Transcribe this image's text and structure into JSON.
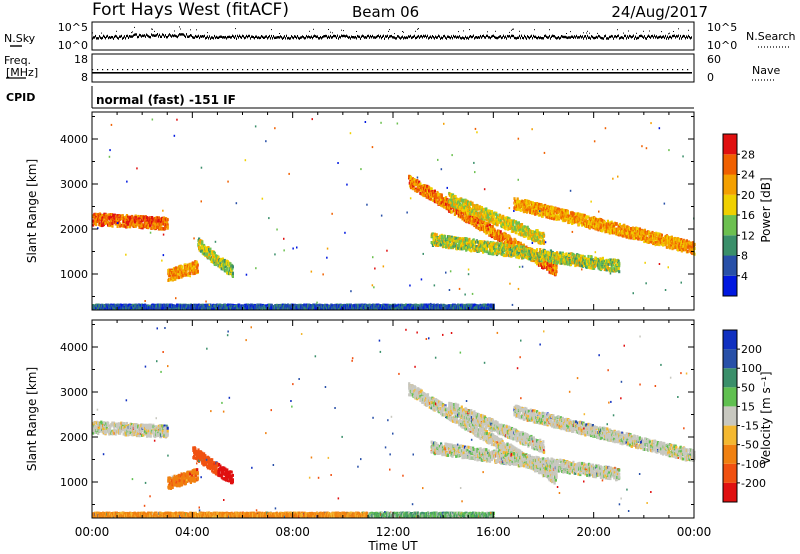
{
  "header": {
    "station": "Fort Hays West (fitACF)",
    "beam": "Beam 06",
    "date": "24/Aug/2017"
  },
  "noise_panel": {
    "left_label": "N.Sky",
    "left_ticks": [
      "10^5",
      "10^0"
    ],
    "right_ticks": [
      "10^5",
      "10^0"
    ],
    "right_label": "N.Search"
  },
  "freq_panel": {
    "left_label_1": "Freq.",
    "left_label_2": "[MHz]",
    "left_ticks": [
      "18",
      "8"
    ],
    "right_ticks": [
      "60",
      "0"
    ],
    "right_label": "Nave"
  },
  "cpid_panel": {
    "label": "CPID",
    "mode": "normal (fast) -151 IF"
  },
  "x_axis": {
    "label": "Time UT",
    "ticks": [
      "00:00",
      "04:00",
      "08:00",
      "12:00",
      "16:00",
      "20:00",
      "00:00"
    ]
  },
  "power_panel": {
    "ylabel": "Slant Range [km]",
    "yticks": [
      "1000",
      "2000",
      "3000",
      "4000"
    ],
    "cbar_label": "Power [dB]",
    "cbar_ticks": [
      "4",
      "8",
      "12",
      "16",
      "20",
      "24",
      "28"
    ]
  },
  "velocity_panel": {
    "ylabel": "Slant Range [km]",
    "yticks": [
      "1000",
      "2000",
      "3000",
      "4000"
    ],
    "cbar_label": "Velocity [m s⁻¹]",
    "cbar_ticks": [
      "200",
      "100",
      "50",
      "15",
      "-15",
      "-50",
      "-100",
      "-200"
    ]
  },
  "colors": {
    "power_scale": [
      "#0018e0",
      "#2850a8",
      "#3a8f6a",
      "#6cc050",
      "#f0d000",
      "#f4a000",
      "#f06000",
      "#e01010"
    ],
    "velocity_scale": [
      "#1030c0",
      "#2850a8",
      "#3a8f6a",
      "#60c050",
      "#c8c8c0",
      "#f4b830",
      "#f08010",
      "#f05010",
      "#e01010"
    ]
  },
  "chart_data": [
    {
      "type": "heatmap",
      "name_source": "power_panel",
      "x": "Time UT (hours)",
      "xlim": [
        0,
        24
      ],
      "ylim": [
        200,
        4600
      ],
      "clim": [
        0,
        32
      ],
      "features": [
        {
          "t0": 0.0,
          "t1": 3.0,
          "range_start": 2250,
          "range_end": 2150,
          "value": 26
        },
        {
          "t0": 3.0,
          "t1": 4.2,
          "range_start": 1000,
          "range_end": 1200,
          "value": 22
        },
        {
          "t0": 4.2,
          "t1": 5.0,
          "range_start": 1700,
          "range_end": 1300,
          "value": 16
        },
        {
          "t0": 5.0,
          "t1": 5.6,
          "range_start": 1300,
          "range_end": 1100,
          "value": 14
        },
        {
          "t0": 0.0,
          "t1": 16.0,
          "range_start": 300,
          "range_end": 300,
          "value": 6
        },
        {
          "t0": 12.6,
          "t1": 18.5,
          "range_start": 3100,
          "range_end": 1100,
          "value": 24
        },
        {
          "t0": 13.5,
          "t1": 21.0,
          "range_start": 1800,
          "range_end": 1200,
          "value": 16
        },
        {
          "t0": 14.2,
          "t1": 18.0,
          "range_start": 2700,
          "range_end": 1800,
          "value": 18
        },
        {
          "t0": 16.8,
          "t1": 24.0,
          "range_start": 2600,
          "range_end": 1600,
          "value": 22
        }
      ]
    },
    {
      "type": "heatmap",
      "name_source": "velocity_panel",
      "x": "Time UT (hours)",
      "xlim": [
        0,
        24
      ],
      "ylim": [
        200,
        4600
      ],
      "clim": [
        -250,
        250
      ],
      "features": [
        {
          "t0": 0.0,
          "t1": 3.0,
          "range_start": 2250,
          "range_end": 2150,
          "value": 0
        },
        {
          "t0": 3.0,
          "t1": 4.2,
          "range_start": 1000,
          "range_end": 1200,
          "value": -60
        },
        {
          "t0": 4.0,
          "t1": 5.0,
          "range_start": 1700,
          "range_end": 1300,
          "value": -110
        },
        {
          "t0": 5.0,
          "t1": 5.6,
          "range_start": 1300,
          "range_end": 1100,
          "value": -170
        },
        {
          "t0": 0.0,
          "t1": 11.0,
          "range_start": 300,
          "range_end": 300,
          "value": -40
        },
        {
          "t0": 11.0,
          "t1": 16.0,
          "range_start": 300,
          "range_end": 300,
          "value": 25
        },
        {
          "t0": 12.6,
          "t1": 18.5,
          "range_start": 3100,
          "range_end": 1100,
          "value": 0
        },
        {
          "t0": 13.5,
          "t1": 21.0,
          "range_start": 1800,
          "range_end": 1200,
          "value": 0
        },
        {
          "t0": 14.2,
          "t1": 18.0,
          "range_start": 2700,
          "range_end": 1800,
          "value": 0
        },
        {
          "t0": 16.8,
          "t1": 24.0,
          "range_start": 2600,
          "range_end": 1600,
          "value": 0
        }
      ]
    }
  ]
}
